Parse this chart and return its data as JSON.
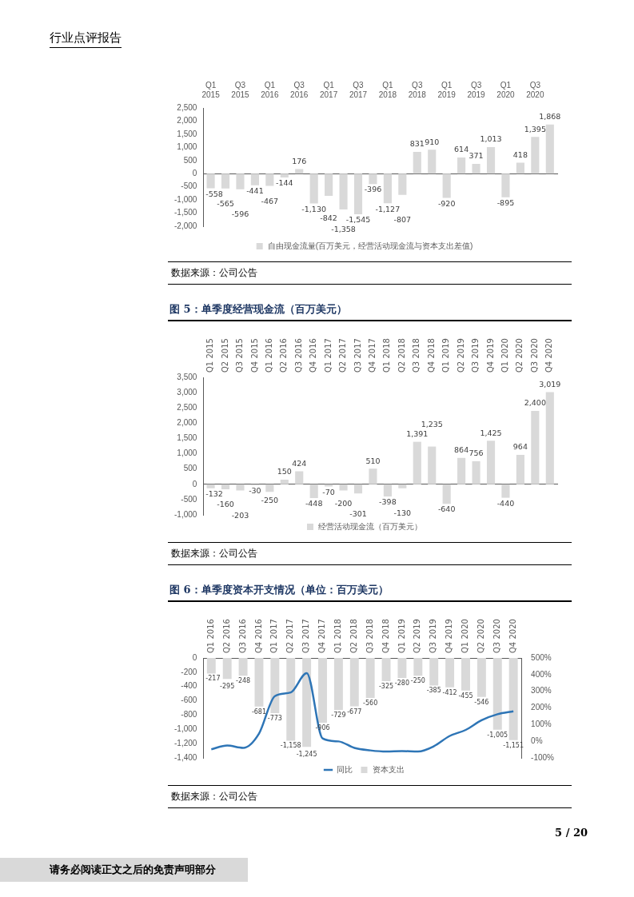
{
  "chart_data": [
    {
      "type": "bar",
      "categories": [
        "Q1 2015",
        null,
        "Q3 2015",
        null,
        "Q1 2016",
        null,
        "Q3 2016",
        null,
        "Q1 2017",
        null,
        "Q3 2017",
        null,
        "Q1 2018",
        null,
        "Q3 2018",
        null,
        "Q1 2019",
        null,
        "Q3 2019",
        null,
        "Q1 2020",
        null,
        "Q3 2020",
        null
      ],
      "series": [
        {
          "name": "自由现金流量(百万美元，经营活动现金流与资本支出差值)",
          "color": "#d9d9d9",
          "values": [
            -558,
            -565,
            -596,
            -441,
            -467,
            -144,
            176,
            -1130,
            -842,
            -1358,
            -1545,
            -396,
            -1127,
            -807,
            831,
            910,
            -920,
            614,
            371,
            1013,
            -895,
            418,
            1395,
            1868
          ],
          "value_labels": [
            "-558",
            "-565",
            "-596",
            "-441",
            "-467",
            "-144",
            "176",
            "-1,130",
            "-842",
            "-1,358",
            "-1,545",
            "-396",
            "-1,127",
            "-807",
            "831",
            "910",
            "-920",
            "614",
            "371",
            "1,013",
            "-895",
            "418",
            "1,395",
            "1,868"
          ]
        }
      ],
      "ylim": [
        -2000,
        2500
      ],
      "yticks": [
        {
          "value": -2000,
          "label": "-2,000"
        },
        {
          "value": -1500,
          "label": "-1,500"
        },
        {
          "value": -1000,
          "label": "-1,000"
        },
        -500,
        0,
        500,
        {
          "value": 1000,
          "label": "1,000"
        },
        {
          "value": 1500,
          "label": "1,500"
        },
        {
          "value": 2000,
          "label": "2,000"
        },
        {
          "value": 2500,
          "label": "2,500"
        }
      ],
      "legend": "bottom",
      "annotations": [
        "行业点评报告",
        "数据来源：公司公告"
      ]
    },
    {
      "type": "bar",
      "title": "图 5：单季度经营现金流（百万美元）",
      "categories": [
        "Q1 2015",
        "Q2 2015",
        "Q3 2015",
        "Q4 2015",
        "Q1 2016",
        "Q2 2016",
        "Q3 2016",
        "Q4 2016",
        "Q1 2017",
        "Q2 2017",
        "Q3 2017",
        "Q4 2017",
        "Q1 2018",
        "Q2 2018",
        "Q3 2018",
        "Q4 2018",
        "Q1 2019",
        "Q2 2019",
        "Q3 2019",
        "Q4 2019",
        "Q1 2020",
        "Q2 2020",
        "Q3 2020",
        "Q4 2020"
      ],
      "series": [
        {
          "name": "经营活动现金流（百万美元）",
          "color": "#d9d9d9",
          "values": [
            -132,
            -160,
            -203,
            -30,
            -250,
            150,
            424,
            -448,
            -70,
            -200,
            -301,
            510,
            -398,
            -130,
            1391,
            1235,
            -640,
            864,
            756,
            1425,
            -440,
            964,
            2400,
            3019
          ],
          "value_labels": [
            "-132",
            "-160",
            "-203",
            "-30",
            "-250",
            "150",
            "424",
            "-448",
            "-70",
            "-200",
            "-301",
            "510",
            "-398",
            "-130",
            "1,391",
            "1,235",
            "-640",
            "864",
            "756",
            "1,425",
            "-440",
            "964",
            "2,400",
            "3,019"
          ]
        }
      ],
      "ylim": [
        -1000,
        3500
      ],
      "yticks": [
        {
          "value": -1000,
          "label": "-1,000"
        },
        -500,
        0,
        500,
        {
          "value": 1000,
          "label": "1,000"
        },
        {
          "value": 1500,
          "label": "1,500"
        },
        {
          "value": 2000,
          "label": "2,000"
        },
        {
          "value": 2500,
          "label": "2,500"
        },
        {
          "value": 3000,
          "label": "3,000"
        },
        {
          "value": 3500,
          "label": "3,500"
        }
      ],
      "legend": "bottom",
      "annotations": [
        "数据来源：公司公告"
      ]
    },
    {
      "type": "bar",
      "title": "图 6：单季度资本开支情况（单位：百万美元）",
      "categories": [
        "Q1 2016",
        "Q2 2016",
        "Q3 2016",
        "Q4 2016",
        "Q1 2017",
        "Q2 2017",
        "Q3 2017",
        "Q4 2017",
        "Q1 2018",
        "Q2 2018",
        "Q3 2018",
        "Q4 2018",
        "Q1 2019",
        "Q2 2019",
        "Q3 2019",
        "Q4 2019",
        "Q1 2020",
        "Q2 2020",
        "Q3 2020",
        "Q4 2020"
      ],
      "series": [
        {
          "name": "资本支出",
          "type": "bar",
          "color": "#d9d9d9",
          "values": [
            -217,
            -295,
            -248,
            -681,
            -773,
            -1158,
            -1245,
            -906,
            -729,
            -677,
            -560,
            -325,
            -280,
            -250,
            -385,
            -412,
            -455,
            -546,
            -1005,
            -1151
          ],
          "value_labels": [
            "-217",
            "-295",
            "-248",
            "-681",
            "-773",
            "-1,158",
            "-1,245",
            "-906",
            "-729",
            "-677",
            "-560",
            "-325",
            "-280",
            "-250",
            "-385",
            "-412",
            "-455",
            "-546",
            "-1,005",
            "-1,151"
          ]
        },
        {
          "name": "同比",
          "type": "line",
          "axis": "y2",
          "color": "#2e75b6",
          "values": [
            -48,
            -26,
            -40,
            46,
            271,
            293,
            409,
            17,
            -1,
            -40,
            -55,
            -62,
            -59,
            -62,
            -30,
            32,
            68,
            126,
            162,
            180
          ]
        }
      ],
      "ylim": [
        -1400,
        0
      ],
      "yticks": [
        {
          "value": -1400,
          "label": "-1,400"
        },
        {
          "value": -1200,
          "label": "-1,200"
        },
        {
          "value": -1000,
          "label": "-1,000"
        },
        -800,
        -600,
        -400,
        -200,
        0
      ],
      "y2lim": [
        -100,
        500
      ],
      "y2ticks": [
        {
          "value": -100,
          "label": "-100%"
        },
        {
          "value": 0,
          "label": "0%"
        },
        {
          "value": 100,
          "label": "100%"
        },
        {
          "value": 200,
          "label": "200%"
        },
        {
          "value": 300,
          "label": "300%"
        },
        {
          "value": 400,
          "label": "400%"
        },
        {
          "value": 500,
          "label": "500%"
        }
      ],
      "legend": "bottom",
      "marker": "none",
      "annotations": [
        "数据来源：公司公告",
        "5 / 20",
        "请务必阅读正文之后的免责声明部分"
      ]
    }
  ]
}
